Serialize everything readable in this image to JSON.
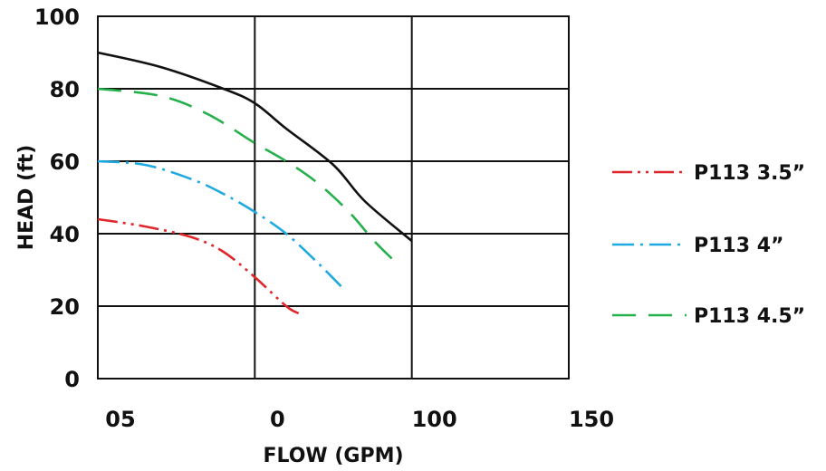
{
  "chart_data": {
    "type": "line",
    "title": "",
    "xlabel": "FLOW (GPM)",
    "ylabel": "HEAD (ft)",
    "x_tick_labels": [
      "05",
      "0",
      "100",
      "150"
    ],
    "y_tick_labels": [
      "0",
      "20",
      "40",
      "60",
      "80",
      "100"
    ],
    "xlim": [
      0,
      150
    ],
    "ylim": [
      0,
      100
    ],
    "grid": true,
    "legend_position": "right",
    "series": [
      {
        "name": "",
        "style": "solid",
        "color": "#111111",
        "points": [
          [
            0,
            90
          ],
          [
            20,
            86
          ],
          [
            40,
            80
          ],
          [
            50,
            76
          ],
          [
            60,
            69
          ],
          [
            75,
            59
          ],
          [
            85,
            49
          ],
          [
            100,
            38
          ]
        ]
      },
      {
        "name": "P113 3.5”",
        "style": "dash-dot-dot",
        "color": "#e0262b",
        "points": [
          [
            0,
            44
          ],
          [
            15,
            42
          ],
          [
            30,
            39
          ],
          [
            40,
            35
          ],
          [
            50,
            28
          ],
          [
            60,
            20
          ],
          [
            64,
            18
          ]
        ]
      },
      {
        "name": "P113 4”",
        "style": "dash-dot",
        "color": "#1fa9e1",
        "points": [
          [
            0,
            60
          ],
          [
            15,
            59
          ],
          [
            30,
            55
          ],
          [
            40,
            51
          ],
          [
            50,
            46
          ],
          [
            60,
            40
          ],
          [
            70,
            32
          ],
          [
            78,
            25
          ]
        ]
      },
      {
        "name": "P113 4.5”",
        "style": "dashed",
        "color": "#24b04b",
        "points": [
          [
            0,
            80
          ],
          [
            20,
            78
          ],
          [
            35,
            73
          ],
          [
            50,
            65
          ],
          [
            60,
            60
          ],
          [
            70,
            54
          ],
          [
            80,
            46
          ],
          [
            88,
            38
          ],
          [
            95,
            32
          ]
        ]
      }
    ]
  }
}
